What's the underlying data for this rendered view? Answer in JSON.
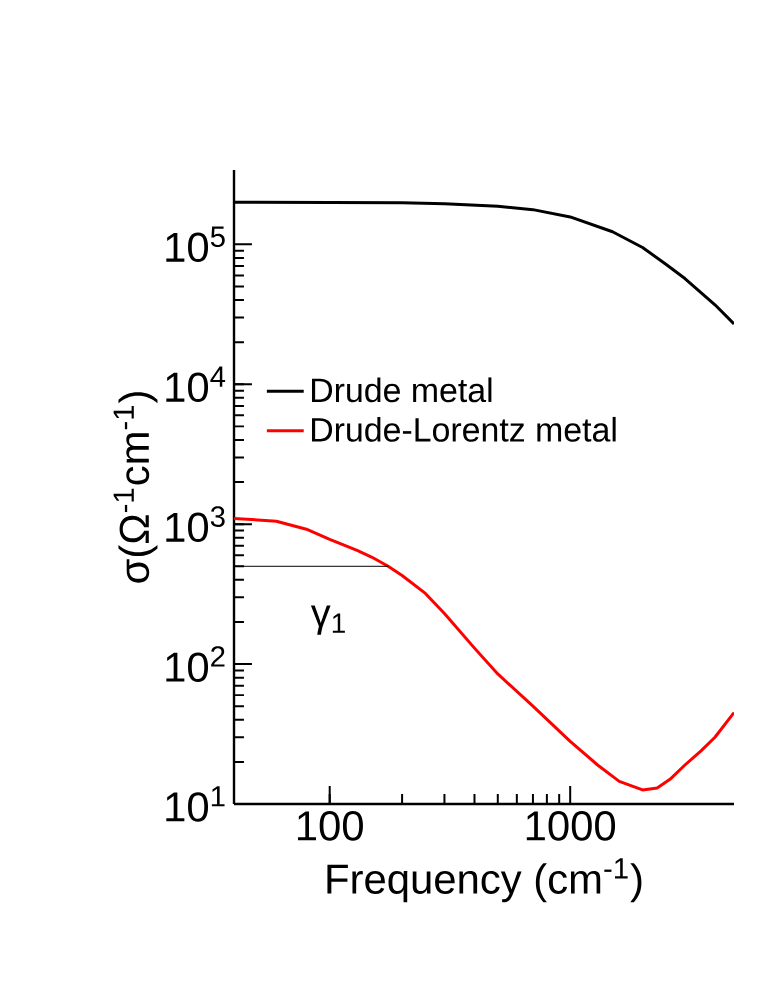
{
  "chart_data": {
    "type": "line",
    "xlabel": "Frequency (cm$^{-1}$)",
    "ylabel": "σ(Ω$^{-1}$cm$^{-1}$)",
    "log": "xy",
    "xlim": [
      40,
      4800
    ],
    "ylim": [
      10,
      340000
    ],
    "xticks": [
      100,
      1000
    ],
    "yticks": [
      {
        "value": 10,
        "label": "10$^{1}$"
      },
      {
        "value": 100,
        "label": "10$^{2}$"
      },
      {
        "value": 1000,
        "label": "10$^{3}$"
      },
      {
        "value": 10000,
        "label": "10$^{4}$"
      },
      {
        "value": 100000,
        "label": "10$^{5}$"
      }
    ],
    "legend": "left",
    "grid": false,
    "annotations": [
      "γ$_{1}$"
    ],
    "series": [
      {
        "name": "Drude metal",
        "color": "#000000",
        "x": [
          40,
          100,
          200,
          300,
          500,
          700,
          1000,
          1500,
          2000,
          2500,
          3000,
          4000,
          4800
        ],
        "values": [
          200000,
          199000,
          198000,
          195000,
          187000,
          177000,
          157000,
          123000,
          95000,
          72000,
          57000,
          37000,
          27000
        ]
      },
      {
        "name": "Drude-Lorentz metal",
        "color": "#ff0000",
        "x": [
          40,
          60,
          80,
          100,
          130,
          150,
          175,
          200,
          250,
          300,
          400,
          500,
          700,
          1000,
          1300,
          1600,
          2000,
          2300,
          2600,
          3000,
          3500,
          4000,
          4800
        ],
        "values": [
          1100,
          1050,
          920,
          780,
          650,
          580,
          500,
          430,
          320,
          230,
          130,
          85,
          50,
          28,
          19,
          14.5,
          12.6,
          13,
          15,
          19,
          24,
          30,
          45
        ]
      },
      {
        "color": "#000000",
        "x": [
          40,
          175
        ],
        "values": [
          500,
          500
        ]
      }
    ]
  }
}
